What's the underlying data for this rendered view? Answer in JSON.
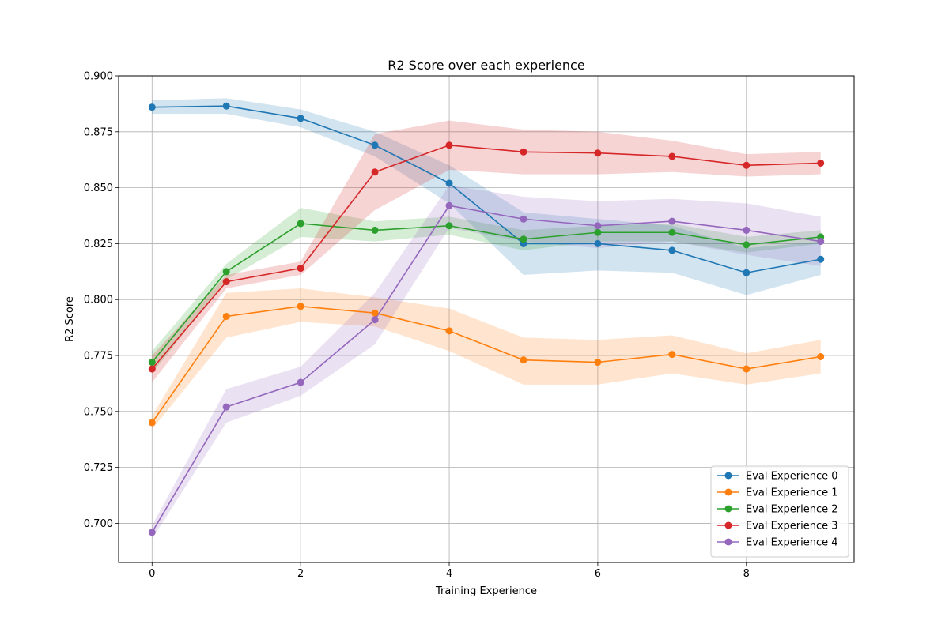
{
  "chart_data": {
    "type": "line",
    "title": "R2 Score over each experience",
    "xlabel": "Training Experience",
    "ylabel": "R2 Score",
    "xlim": [
      -0.45,
      9.45
    ],
    "ylim": [
      0.6825,
      0.9
    ],
    "xticks": [
      0,
      2,
      4,
      6,
      8
    ],
    "xtick_labels": [
      "0",
      "2",
      "4",
      "6",
      "8"
    ],
    "yticks": [
      0.7,
      0.725,
      0.75,
      0.775,
      0.8,
      0.825,
      0.85,
      0.875,
      0.9
    ],
    "ytick_labels": [
      "0.700",
      "0.725",
      "0.750",
      "0.775",
      "0.800",
      "0.825",
      "0.850",
      "0.875",
      "0.900"
    ],
    "grid": true,
    "legend_position": "lower-right",
    "x": [
      0,
      1,
      2,
      3,
      4,
      5,
      6,
      7,
      8,
      9
    ],
    "series": [
      {
        "name": "Eval Experience 0",
        "color": "#1f77b4",
        "values": [
          0.886,
          0.8865,
          0.881,
          0.869,
          0.852,
          0.825,
          0.825,
          0.822,
          0.812,
          0.818
        ],
        "lower": [
          0.883,
          0.883,
          0.877,
          0.864,
          0.843,
          0.811,
          0.813,
          0.812,
          0.802,
          0.811
        ],
        "upper": [
          0.889,
          0.89,
          0.885,
          0.875,
          0.86,
          0.839,
          0.836,
          0.833,
          0.823,
          0.826
        ]
      },
      {
        "name": "Eval Experience 1",
        "color": "#ff7f0e",
        "values": [
          0.745,
          0.7925,
          0.797,
          0.794,
          0.786,
          0.773,
          0.772,
          0.7755,
          0.769,
          0.7745
        ],
        "lower": [
          0.742,
          0.783,
          0.79,
          0.788,
          0.777,
          0.762,
          0.762,
          0.767,
          0.762,
          0.767
        ],
        "upper": [
          0.748,
          0.803,
          0.805,
          0.801,
          0.796,
          0.783,
          0.782,
          0.784,
          0.776,
          0.782
        ]
      },
      {
        "name": "Eval Experience 2",
        "color": "#2ca02c",
        "values": [
          0.772,
          0.8125,
          0.834,
          0.831,
          0.833,
          0.827,
          0.83,
          0.83,
          0.8245,
          0.828
        ],
        "lower": [
          0.767,
          0.809,
          0.828,
          0.826,
          0.829,
          0.822,
          0.826,
          0.826,
          0.821,
          0.825
        ],
        "upper": [
          0.777,
          0.816,
          0.841,
          0.835,
          0.837,
          0.831,
          0.833,
          0.834,
          0.828,
          0.831
        ]
      },
      {
        "name": "Eval Experience 3",
        "color": "#d62728",
        "values": [
          0.769,
          0.808,
          0.814,
          0.857,
          0.869,
          0.866,
          0.8655,
          0.864,
          0.86,
          0.861
        ],
        "lower": [
          0.763,
          0.805,
          0.811,
          0.84,
          0.858,
          0.856,
          0.856,
          0.857,
          0.855,
          0.856
        ],
        "upper": [
          0.775,
          0.811,
          0.817,
          0.874,
          0.88,
          0.876,
          0.875,
          0.871,
          0.865,
          0.866
        ]
      },
      {
        "name": "Eval Experience 4",
        "color": "#9467bd",
        "values": [
          0.696,
          0.752,
          0.763,
          0.791,
          0.842,
          0.836,
          0.833,
          0.835,
          0.831,
          0.826
        ],
        "lower": [
          0.693,
          0.745,
          0.757,
          0.78,
          0.832,
          0.826,
          0.823,
          0.826,
          0.82,
          0.815
        ],
        "upper": [
          0.699,
          0.76,
          0.77,
          0.803,
          0.851,
          0.846,
          0.844,
          0.845,
          0.843,
          0.837
        ]
      }
    ]
  }
}
